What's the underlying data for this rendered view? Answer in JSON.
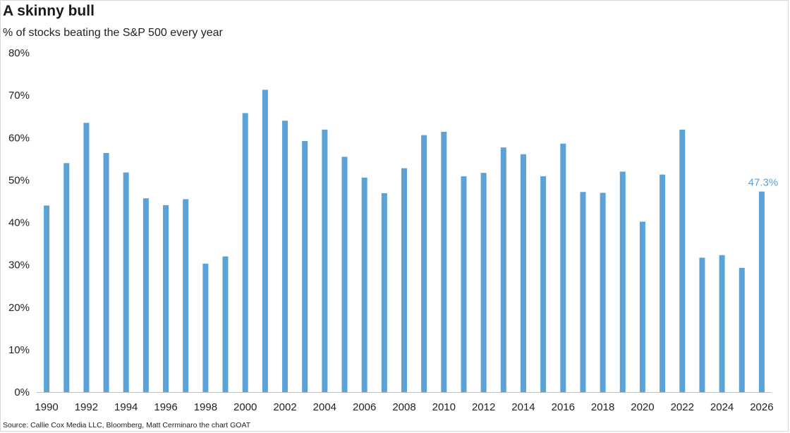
{
  "header": {
    "title": "A skinny bull",
    "subtitle": "% of stocks beating the S&P 500 every year"
  },
  "footer": {
    "source": "Source: Callie Cox Media LLC, Bloomberg, Matt Cerminaro the chart GOAT"
  },
  "colors": {
    "bar": "#5ba3d6",
    "axis": "#bfbfbf",
    "label_highlight": "#5ba3d6"
  },
  "chart_data": {
    "type": "bar",
    "title": "A skinny bull",
    "subtitle": "% of stocks beating the S&P 500 every year",
    "xlabel": "",
    "ylabel": "",
    "ylim": [
      0,
      80
    ],
    "grid": false,
    "y_ticks": [
      0,
      10,
      20,
      30,
      40,
      50,
      60,
      70,
      80
    ],
    "y_tick_labels": [
      "0%",
      "10%",
      "20%",
      "30%",
      "40%",
      "50%",
      "60%",
      "70%",
      "80%"
    ],
    "x_tick_labels": [
      "1990",
      "1992",
      "1994",
      "1996",
      "1998",
      "2000",
      "2002",
      "2004",
      "2006",
      "2008",
      "2010",
      "2012",
      "2014",
      "2016",
      "2018",
      "2020",
      "2022",
      "2024",
      "2026"
    ],
    "categories": [
      1990,
      1991,
      1992,
      1993,
      1994,
      1995,
      1996,
      1997,
      1998,
      1999,
      2000,
      2001,
      2002,
      2003,
      2004,
      2005,
      2006,
      2007,
      2008,
      2009,
      2010,
      2011,
      2012,
      2013,
      2014,
      2015,
      2016,
      2017,
      2018,
      2019,
      2020,
      2021,
      2022,
      2023,
      2024,
      2025,
      2026
    ],
    "values": [
      44.0,
      54.0,
      63.5,
      56.4,
      51.8,
      45.7,
      44.1,
      45.5,
      30.3,
      32.0,
      65.8,
      71.3,
      64.0,
      59.2,
      61.9,
      55.5,
      50.6,
      46.9,
      52.8,
      60.6,
      61.4,
      50.9,
      51.7,
      57.7,
      56.1,
      50.9,
      58.6,
      47.2,
      47.0,
      52.0,
      40.2,
      51.3,
      61.9,
      31.7,
      32.3,
      29.3,
      47.3
    ],
    "annotations": [
      {
        "category": 2026,
        "text": "47.3%"
      }
    ]
  }
}
